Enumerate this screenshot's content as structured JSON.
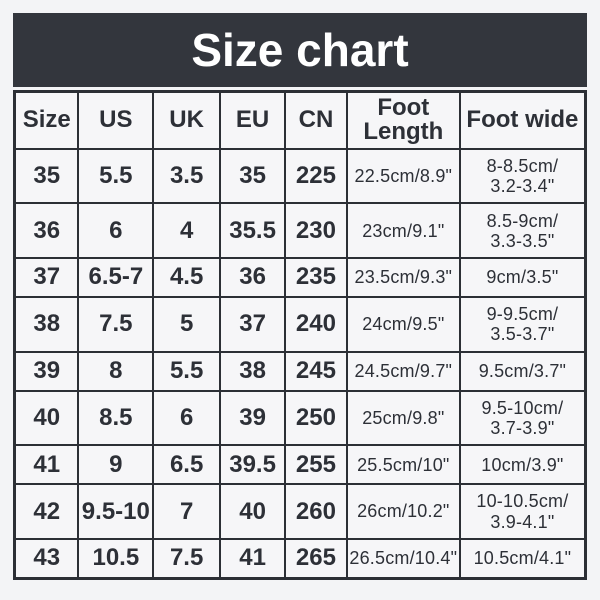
{
  "colors": {
    "page_bg": "#f3f4f6",
    "banner_bg": "#33363d",
    "cell_bg": "#f6f6f8",
    "border": "#2c2f35",
    "text": "#2d3037",
    "title_text": "#ffffff"
  },
  "chart_data": {
    "type": "table",
    "title": "Size chart",
    "columns": [
      "Size",
      "US",
      "UK",
      "EU",
      "CN",
      "Foot\nLength",
      "Foot wide"
    ],
    "rows": [
      [
        "35",
        "5.5",
        "3.5",
        "35",
        "225",
        "22.5cm/8.9\"",
        "8-8.5cm/\n3.2-3.4\""
      ],
      [
        "36",
        "6",
        "4",
        "35.5",
        "230",
        "23cm/9.1\"",
        "8.5-9cm/\n3.3-3.5\""
      ],
      [
        "37",
        "6.5-7",
        "4.5",
        "36",
        "235",
        "23.5cm/9.3\"",
        "9cm/3.5\""
      ],
      [
        "38",
        "7.5",
        "5",
        "37",
        "240",
        "24cm/9.5\"",
        "9-9.5cm/\n3.5-3.7\""
      ],
      [
        "39",
        "8",
        "5.5",
        "38",
        "245",
        "24.5cm/9.7\"",
        "9.5cm/3.7\""
      ],
      [
        "40",
        "8.5",
        "6",
        "39",
        "250",
        "25cm/9.8\"",
        "9.5-10cm/\n3.7-3.9\""
      ],
      [
        "41",
        "9",
        "6.5",
        "39.5",
        "255",
        "25.5cm/10\"",
        "10cm/3.9\""
      ],
      [
        "42",
        "9.5-10",
        "7",
        "40",
        "260",
        "26cm/10.2\"",
        "10-10.5cm/\n3.9-4.1\""
      ],
      [
        "43",
        "10.5",
        "7.5",
        "41",
        "265",
        "26.5cm/10.4\"",
        "10.5cm/4.1\""
      ]
    ]
  }
}
